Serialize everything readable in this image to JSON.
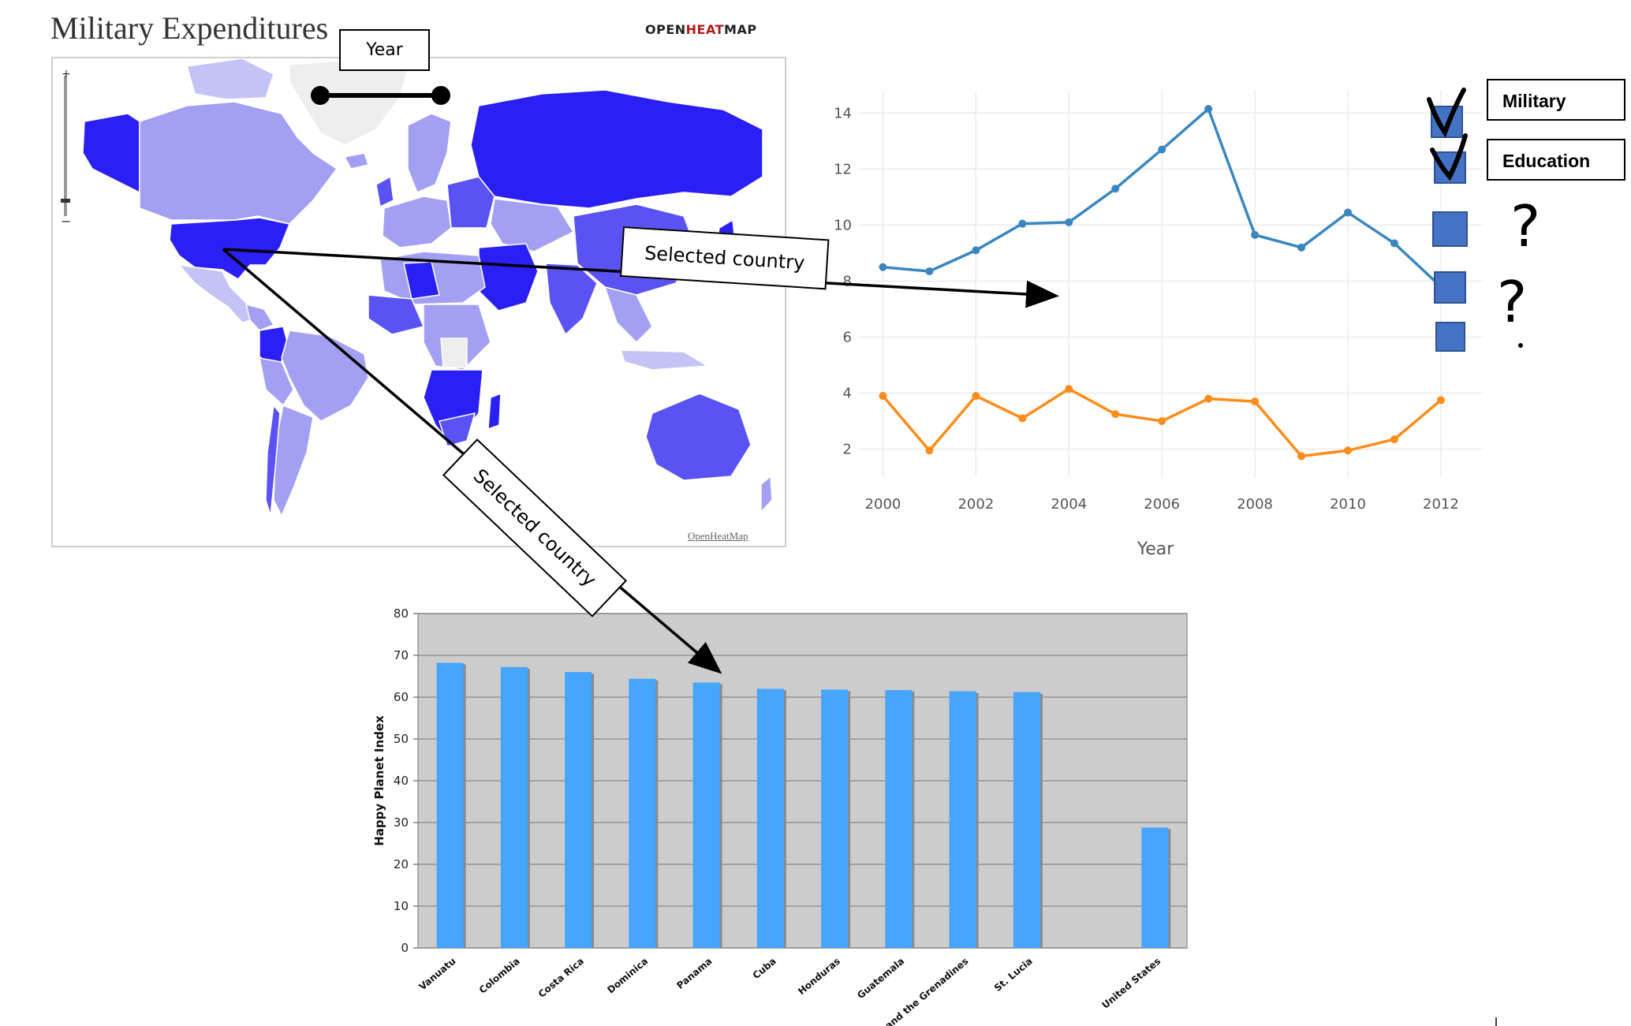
{
  "map": {
    "title": "Military Expenditures",
    "brand_prefix": "OPEN",
    "brand_heat": "HEAT",
    "brand_suffix": "MAP",
    "credit": "OpenHeatMap",
    "zoom_plus": "+",
    "zoom_minus": "−"
  },
  "annotations": {
    "year_label": "Year",
    "selected_country_top": "Selected country",
    "selected_country_bottom": "Selected country",
    "question_mark_1": "?",
    "question_mark_2": "?"
  },
  "legend": {
    "military": "Military",
    "education": "Education"
  },
  "colors": {
    "map_dark": "#2a1ff5",
    "map_mid": "#5a52f2",
    "map_light": "#a3a0f3",
    "map_lighter": "#c5c3f6",
    "map_none": "#eeeeee",
    "military_line": "#3a86bf",
    "education_line": "#ff8c1a",
    "bar_fill": "#45a5ff",
    "bar_bg": "#cccccc",
    "legend_square": "#4472c4"
  },
  "chart_data": [
    {
      "type": "line",
      "xlabel": "Year",
      "x": [
        2000,
        2001,
        2002,
        2003,
        2004,
        2005,
        2006,
        2007,
        2008,
        2009,
        2010,
        2011,
        2012
      ],
      "xticks": [
        2000,
        2002,
        2004,
        2006,
        2008,
        2010,
        2012
      ],
      "yticks": [
        2,
        4,
        6,
        8,
        10,
        12,
        14
      ],
      "xlim": [
        1999.5,
        2012.9
      ],
      "ylim": [
        1,
        14.8
      ],
      "grid": true,
      "series": [
        {
          "values": [
            8.5,
            8.35,
            9.1,
            10.05,
            10.1,
            11.3,
            12.7,
            14.15,
            9.65,
            9.2,
            10.45,
            9.35,
            7.8
          ]
        },
        {
          "values": [
            3.9,
            1.95,
            3.9,
            3.1,
            4.15,
            3.25,
            3.0,
            3.8,
            3.7,
            1.75,
            1.95,
            2.35,
            3.75
          ]
        }
      ]
    },
    {
      "type": "bar",
      "ylabel": "Happy Planet Index",
      "ylim": [
        0,
        80
      ],
      "yticks": [
        0,
        10,
        20,
        30,
        40,
        50,
        60,
        70,
        80
      ],
      "grid": true,
      "categories": [
        "Vanuatu",
        "Colombia",
        "Costa Rica",
        "Dominica",
        "Panama",
        "Cuba",
        "Honduras",
        "Guatemala",
        "St Vincent and the Grenadines",
        "St. Lucia",
        "",
        "United States"
      ],
      "values": [
        68.2,
        67.2,
        66.0,
        64.4,
        63.5,
        62.0,
        61.8,
        61.7,
        61.4,
        61.2,
        null,
        28.8
      ]
    }
  ]
}
